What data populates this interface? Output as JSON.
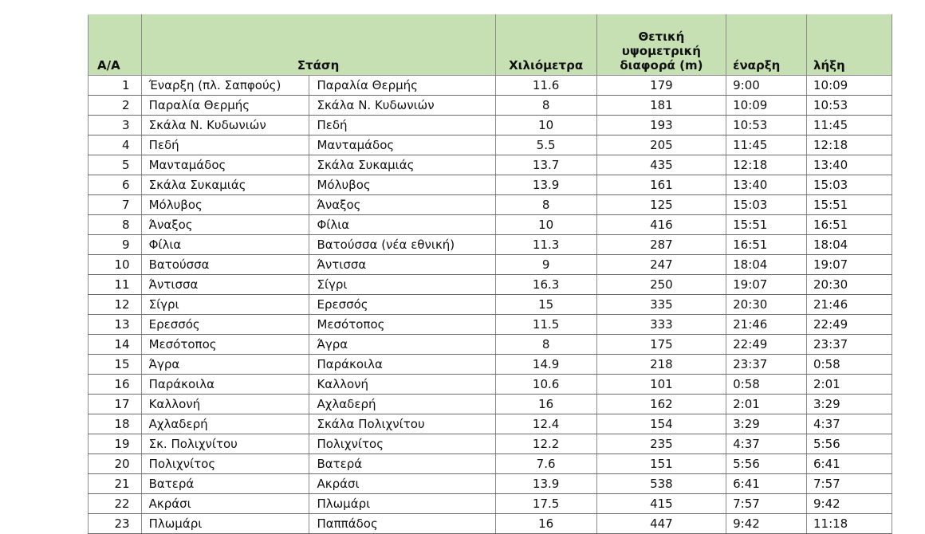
{
  "table": {
    "headers": {
      "aa": "Α/Α",
      "stop": "Στάση",
      "km": "Χιλιόμετρα",
      "elevation": "Θετική υψομετρική διαφορά (m)",
      "start": "έναρξη",
      "end": "λήξη"
    },
    "rows": [
      {
        "aa": "1",
        "from": "Έναρξη (πλ. Σαπφούς)",
        "to": "Παραλία Θερμής",
        "km": "11.6",
        "elev": "179",
        "start": "9:00",
        "end": "10:09"
      },
      {
        "aa": "2",
        "from": "Παραλία Θερμής",
        "to": "Σκάλα Ν. Κυδωνιών",
        "km": "8",
        "elev": "181",
        "start": "10:09",
        "end": "10:53"
      },
      {
        "aa": "3",
        "from": "Σκάλα Ν. Κυδωνιών",
        "to": "Πεδή",
        "km": "10",
        "elev": "193",
        "start": "10:53",
        "end": "11:45"
      },
      {
        "aa": "4",
        "from": "Πεδή",
        "to": "Μανταμάδος",
        "km": "5.5",
        "elev": "205",
        "start": "11:45",
        "end": "12:18"
      },
      {
        "aa": "5",
        "from": "Μανταμάδος",
        "to": "Σκάλα Συκαμιάς",
        "km": "13.7",
        "elev": "435",
        "start": "12:18",
        "end": "13:40"
      },
      {
        "aa": "6",
        "from": "Σκάλα Συκαμιάς",
        "to": "Μόλυβος",
        "km": "13.9",
        "elev": "161",
        "start": "13:40",
        "end": "15:03"
      },
      {
        "aa": "7",
        "from": "Μόλυβος",
        "to": "Άναξος",
        "km": "8",
        "elev": "125",
        "start": "15:03",
        "end": "15:51"
      },
      {
        "aa": "8",
        "from": "Άναξος",
        "to": "Φίλια",
        "km": "10",
        "elev": "416",
        "start": "15:51",
        "end": "16:51"
      },
      {
        "aa": "9",
        "from": "Φίλια",
        "to": "Βατούσσα (νέα εθνική)",
        "km": "11.3",
        "elev": "287",
        "start": "16:51",
        "end": "18:04"
      },
      {
        "aa": "10",
        "from": "Βατούσσα",
        "to": "Άντισσα",
        "km": "9",
        "elev": "247",
        "start": "18:04",
        "end": "19:07"
      },
      {
        "aa": "11",
        "from": "Άντισσα",
        "to": "Σίγρι",
        "km": "16.3",
        "elev": "250",
        "start": "19:07",
        "end": "20:30"
      },
      {
        "aa": "12",
        "from": "Σίγρι",
        "to": "Ερεσσός",
        "km": "15",
        "elev": "335",
        "start": "20:30",
        "end": "21:46"
      },
      {
        "aa": "13",
        "from": "Ερεσσός",
        "to": "Μεσότοπος",
        "km": "11.5",
        "elev": "333",
        "start": "21:46",
        "end": "22:49"
      },
      {
        "aa": "14",
        "from": "Μεσότοπος",
        "to": "Άγρα",
        "km": "8",
        "elev": "175",
        "start": "22:49",
        "end": "23:37"
      },
      {
        "aa": "15",
        "from": "Άγρα",
        "to": "Παράκοιλα",
        "km": "14.9",
        "elev": "218",
        "start": "23:37",
        "end": "0:58"
      },
      {
        "aa": "16",
        "from": "Παράκοιλα",
        "to": "Καλλονή",
        "km": "10.6",
        "elev": "101",
        "start": "0:58",
        "end": "2:01"
      },
      {
        "aa": "17",
        "from": "Καλλονή",
        "to": "Αχλαδερή",
        "km": "16",
        "elev": "162",
        "start": "2:01",
        "end": "3:29"
      },
      {
        "aa": "18",
        "from": "Αχλαδερή",
        "to": "Σκάλα Πολιχνίτου",
        "km": "12.4",
        "elev": "154",
        "start": "3:29",
        "end": "4:37"
      },
      {
        "aa": "19",
        "from": "Σκ. Πολιχνίτου",
        "to": "Πολιχνίτος",
        "km": "12.2",
        "elev": "235",
        "start": "4:37",
        "end": "5:56"
      },
      {
        "aa": "20",
        "from": "Πολιχνίτος",
        "to": "Βατερά",
        "km": "7.6",
        "elev": "151",
        "start": "5:56",
        "end": "6:41"
      },
      {
        "aa": "21",
        "from": "Βατερά",
        "to": "Ακράσι",
        "km": "13.9",
        "elev": "538",
        "start": "6:41",
        "end": "7:57"
      },
      {
        "aa": "22",
        "from": "Ακράσι",
        "to": "Πλωμάρι",
        "km": "17.5",
        "elev": "415",
        "start": "7:57",
        "end": "9:42"
      },
      {
        "aa": "23",
        "from": "Πλωμάρι",
        "to": "Παππάδος",
        "km": "16",
        "elev": "447",
        "start": "9:42",
        "end": "11:18"
      }
    ]
  },
  "colors": {
    "header_background": "#c6e0b4",
    "grid_lines": "#8c8c8c"
  }
}
